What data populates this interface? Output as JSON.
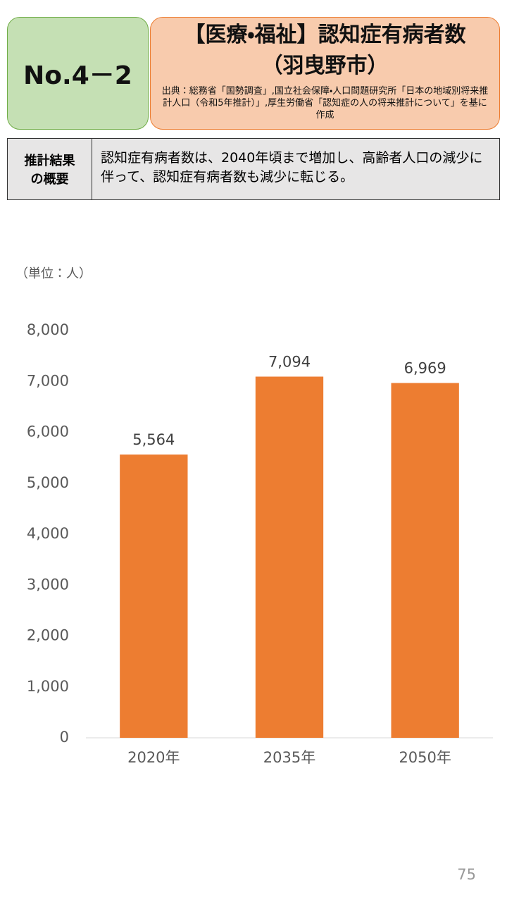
{
  "header": {
    "number": "No.4－2",
    "title": "【医療・福祉】認知症有病者数",
    "subtitle": "（羽曳野市）",
    "source": "出典：総務省「国勢調査」,国立社会保障・人口問題研究所「日本の地域別将来推計人口（令和5年推計）」,厚生労働省「認知症の人の将来推計について」を基に作成"
  },
  "summary": {
    "label": "推計結果の概要",
    "text": "認知症有病者数は、2040年頃まで増加し、高齢者人口の減少に伴って、認知症有病者数も減少に転じる。"
  },
  "chart_data": {
    "type": "bar",
    "unit_label": "（単位：人）",
    "categories": [
      "2020年",
      "2035年",
      "2050年"
    ],
    "values": [
      5564,
      7094,
      6969
    ],
    "value_labels": [
      "5,564",
      "7,094",
      "6,969"
    ],
    "color": "#ed7d31",
    "ylim": [
      0,
      8000
    ],
    "yticks": [
      0,
      {
        "value": 1000,
        "label": "1,000"
      },
      {
        "value": 2000,
        "label": "2,000"
      },
      {
        "value": 3000,
        "label": "3,000"
      },
      {
        "value": 4000,
        "label": "4,000"
      },
      {
        "value": 5000,
        "label": "5,000"
      },
      {
        "value": 6000,
        "label": "6,000"
      },
      {
        "value": 7000,
        "label": "7,000"
      },
      {
        "value": 8000,
        "label": "8,000"
      }
    ]
  },
  "page_number": "75"
}
